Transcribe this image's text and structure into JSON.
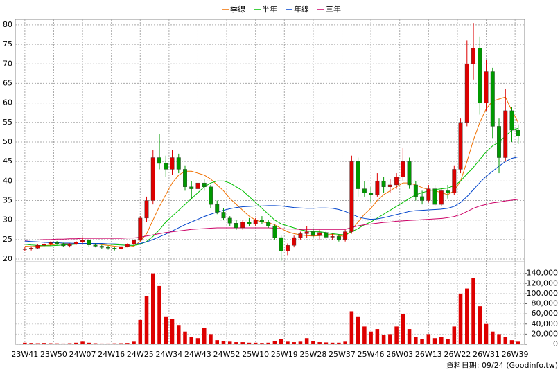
{
  "chart_data": {
    "type": "candlestick",
    "x": [
      0,
      2,
      4,
      6,
      8,
      10,
      12,
      14,
      16,
      18,
      20,
      22,
      24,
      26,
      28,
      30,
      32,
      34,
      36,
      38,
      40,
      42,
      44,
      46,
      48,
      50,
      52,
      54,
      56,
      58,
      60,
      62,
      64,
      66,
      68,
      70,
      72,
      74,
      76,
      78,
      80,
      82,
      84,
      86,
      88,
      90,
      92,
      94,
      96,
      98,
      100,
      102,
      104,
      106,
      108,
      110,
      112,
      114,
      116,
      118,
      120,
      122,
      124,
      126,
      128,
      130,
      132,
      134,
      136,
      138,
      140,
      142,
      144,
      146,
      148,
      150,
      152,
      154
    ],
    "open": [
      22.5,
      22.6,
      22.8,
      23.5,
      23.8,
      24.2,
      23.9,
      23.4,
      23.8,
      24.4,
      24.8,
      23.6,
      23.3,
      23,
      22.8,
      22.6,
      23.2,
      23.8,
      24.8,
      30.5,
      35,
      46,
      44.5,
      43,
      46,
      43,
      38.5,
      38,
      39.5,
      38.5,
      34,
      32,
      30.5,
      29.2,
      28,
      29.5,
      29,
      30,
      29.5,
      28.5,
      25.5,
      22,
      23.5,
      25.5,
      26.5,
      27,
      26,
      26.8,
      25.6,
      25.8,
      25,
      27,
      45,
      38,
      37,
      36.5,
      40,
      38.5,
      39,
      41,
      45,
      39,
      36,
      35,
      38,
      34,
      37.5,
      37,
      43,
      55,
      70,
      74,
      60,
      68,
      54,
      46,
      58,
      53
    ],
    "high": [
      23,
      23.3,
      23.8,
      24.2,
      24.5,
      24.6,
      24.2,
      24,
      24.6,
      25.6,
      25,
      24,
      23.6,
      23.4,
      23.2,
      23.4,
      24,
      25,
      31,
      36,
      48,
      52,
      46.5,
      48,
      47,
      44,
      40,
      40.5,
      40.5,
      39,
      35,
      33,
      31,
      30,
      30,
      30.5,
      30.5,
      31,
      30,
      28.8,
      26,
      24,
      26,
      27,
      28.5,
      27.8,
      27.5,
      27.2,
      26.5,
      26.4,
      27.5,
      46.5,
      46,
      40,
      38.5,
      42,
      41,
      40.5,
      42,
      48.5,
      46,
      40,
      37.5,
      39,
      39,
      38,
      39,
      44,
      56,
      76,
      80.5,
      77,
      71,
      69,
      56,
      63.5,
      59,
      54.5
    ],
    "low": [
      22,
      22.2,
      22.5,
      23.2,
      23.5,
      23.6,
      23.2,
      23,
      23.6,
      24,
      23.2,
      23,
      22.6,
      22.4,
      22.2,
      22.3,
      23,
      23.5,
      24.6,
      29.5,
      34,
      43,
      41,
      41.5,
      42,
      37.5,
      35.5,
      37,
      37.5,
      33,
      31.5,
      30,
      28.5,
      27.5,
      27.5,
      28.5,
      28.5,
      29,
      28,
      25,
      19.5,
      21,
      23,
      25,
      25.5,
      25.5,
      25,
      25.2,
      24.8,
      24.5,
      24.5,
      26.5,
      36,
      36,
      34.5,
      36,
      37,
      37,
      38,
      40,
      38,
      35,
      34,
      34.5,
      33.5,
      33.5,
      35.5,
      36.5,
      42,
      54,
      66,
      57,
      58,
      51,
      42,
      45,
      50,
      49.5
    ],
    "close": [
      22.6,
      22.8,
      23.5,
      23.8,
      24.2,
      23.9,
      23.4,
      23.8,
      24.4,
      24.8,
      23.6,
      23.3,
      23,
      22.8,
      22.6,
      23.2,
      23.8,
      24.8,
      30.5,
      35,
      46,
      44.5,
      43,
      46,
      43,
      38.5,
      38,
      39.5,
      38.5,
      34,
      32,
      30.5,
      29.2,
      28,
      29.5,
      29,
      30,
      29.5,
      28.5,
      25.5,
      22,
      23.5,
      25.5,
      26.5,
      27,
      26,
      26.8,
      25.6,
      25.8,
      25,
      27,
      45,
      38,
      37,
      36.5,
      40,
      38.5,
      39,
      41,
      45,
      39,
      36,
      35,
      38,
      34,
      37.5,
      37,
      43,
      55,
      70,
      74,
      60,
      68,
      54,
      46,
      58,
      53,
      51.5
    ],
    "up_color": "#dd0000",
    "down_color": "#009900",
    "volume": {
      "color": "#dd0000",
      "values": [
        3000,
        2500,
        2000,
        2500,
        2000,
        1800,
        1500,
        2000,
        3000,
        5000,
        3000,
        2000,
        1500,
        1500,
        1800,
        2000,
        2500,
        5000,
        48000,
        95000,
        140000,
        115000,
        55000,
        50000,
        38000,
        25000,
        15000,
        12000,
        32000,
        20000,
        8000,
        6000,
        5000,
        4000,
        4000,
        3000,
        3000,
        2500,
        3000,
        6000,
        10000,
        5000,
        4000,
        5000,
        12000,
        6000,
        4000,
        3500,
        3000,
        3000,
        5000,
        65000,
        55000,
        35000,
        25000,
        30000,
        18000,
        20000,
        35000,
        60000,
        30000,
        15000,
        10000,
        20000,
        12000,
        15000,
        10000,
        35000,
        100000,
        110000,
        130000,
        75000,
        40000,
        25000,
        20000,
        15000,
        8000,
        5000
      ]
    },
    "series": [
      {
        "name": "季線",
        "color": "#f07000",
        "values": [
          23.3,
          23.2,
          23.3,
          23.4,
          23.6,
          23.8,
          23.9,
          23.9,
          23.9,
          24,
          24,
          23.9,
          23.7,
          23.5,
          23.3,
          23.1,
          23.1,
          23.3,
          24.5,
          26.5,
          30,
          33.5,
          36.5,
          39.5,
          41.5,
          42.5,
          42.5,
          42,
          41.5,
          40.5,
          39,
          37.5,
          35.5,
          34,
          32.5,
          31,
          30,
          29.5,
          29.3,
          28.8,
          27.8,
          27,
          26.5,
          26.2,
          26,
          25.9,
          26,
          26.2,
          26.3,
          26,
          25.8,
          27.5,
          29.5,
          31.5,
          33,
          35,
          36.5,
          37.5,
          38.5,
          39.5,
          39.5,
          39,
          38.3,
          37.8,
          37.5,
          37,
          36.5,
          37.5,
          40,
          45,
          50.5,
          55,
          58.5,
          60.5,
          61,
          61.5,
          58,
          55
        ]
      },
      {
        "name": "半年",
        "color": "#00c000",
        "values": [
          23.8,
          23.6,
          23.5,
          23.4,
          23.4,
          23.5,
          23.6,
          23.7,
          23.8,
          23.9,
          23.9,
          23.9,
          23.8,
          23.8,
          23.7,
          23.6,
          23.5,
          23.5,
          23.8,
          24.5,
          25.8,
          27.5,
          29.5,
          31,
          32.5,
          34,
          35.5,
          37,
          38.5,
          39.5,
          40,
          40,
          39.5,
          38.5,
          37.5,
          36,
          34.5,
          33,
          31.5,
          30,
          29,
          28.5,
          28,
          27.5,
          27.2,
          27,
          27,
          26.8,
          26.5,
          26.3,
          26.2,
          27,
          27.8,
          28.8,
          29.5,
          30.5,
          31.5,
          32.5,
          33.5,
          34.5,
          35.5,
          36.5,
          37,
          37.5,
          37.8,
          38,
          38.2,
          38.8,
          40,
          41.8,
          43.5,
          45.5,
          47.5,
          49,
          50,
          51.5,
          53,
          53.5
        ]
      },
      {
        "name": "年線",
        "color": "#0044cc",
        "values": [
          24.6,
          24.5,
          24.4,
          24.3,
          24.2,
          24.2,
          24.1,
          24.1,
          24,
          24,
          24,
          24,
          24,
          23.9,
          23.9,
          23.8,
          23.8,
          23.8,
          24,
          24.4,
          25,
          25.7,
          26.4,
          27.2,
          28,
          28.8,
          29.5,
          30.2,
          30.9,
          31.5,
          32,
          32.5,
          32.9,
          33.2,
          33.4,
          33.5,
          33.6,
          33.6,
          33.7,
          33.7,
          33.6,
          33.4,
          33.2,
          33.1,
          33,
          33,
          33.1,
          33.1,
          33,
          32.7,
          32.2,
          31.5,
          30.8,
          30.4,
          30.2,
          30.3,
          30.6,
          31,
          31.4,
          31.8,
          32.2,
          32.4,
          32.5,
          32.6,
          32.7,
          32.8,
          33,
          33.5,
          34.5,
          36,
          37.8,
          39.6,
          41.2,
          42.5,
          43.8,
          45,
          45.8,
          46.2
        ]
      },
      {
        "name": "三年",
        "color": "#cc0066",
        "values": [
          24.8,
          24.9,
          24.9,
          25,
          25,
          25.1,
          25.1,
          25.2,
          25.2,
          25.3,
          25.3,
          25.3,
          25.3,
          25.3,
          25.3,
          25.3,
          25.4,
          25.4,
          25.6,
          25.9,
          26.2,
          26.5,
          26.8,
          27,
          27.2,
          27.4,
          27.6,
          27.7,
          27.8,
          27.9,
          28,
          28,
          28,
          28,
          28,
          28,
          28,
          28,
          28,
          27.9,
          27.8,
          27.7,
          27.7,
          27.6,
          27.6,
          27.6,
          27.6,
          27.6,
          27.6,
          27.6,
          27.6,
          28.1,
          28.5,
          28.8,
          29,
          29.2,
          29.4,
          29.5,
          29.7,
          29.8,
          29.9,
          30,
          30.1,
          30.2,
          30.3,
          30.4,
          30.6,
          30.9,
          31.4,
          32.2,
          33,
          33.6,
          34,
          34.4,
          34.6,
          34.9,
          35.1,
          35.3
        ]
      }
    ],
    "xlim": [
      -3,
      156
    ],
    "xticks": [
      {
        "value": 0,
        "label": "23W41"
      },
      {
        "value": 9,
        "label": "23W50"
      },
      {
        "value": 18,
        "label": "24W07"
      },
      {
        "value": 27,
        "label": "24W16"
      },
      {
        "value": 36,
        "label": "24W25"
      },
      {
        "value": 45,
        "label": "24W34"
      },
      {
        "value": 54,
        "label": "24W43"
      },
      {
        "value": 63,
        "label": "24W52"
      },
      {
        "value": 72,
        "label": "25W10"
      },
      {
        "value": 81,
        "label": "25W19"
      },
      {
        "value": 90,
        "label": "25W28"
      },
      {
        "value": 99,
        "label": "25W37"
      },
      {
        "value": 108,
        "label": "25W46"
      },
      {
        "value": 117,
        "label": "26W03"
      },
      {
        "value": 126,
        "label": "26W13"
      },
      {
        "value": 135,
        "label": "26W22"
      },
      {
        "value": 144,
        "label": "26W31"
      },
      {
        "value": 153,
        "label": "26W39"
      }
    ],
    "ylim": [
      19.3,
      81.4
    ],
    "yticks": [
      20,
      25,
      30,
      35,
      40,
      45,
      50,
      55,
      60,
      65,
      70,
      75,
      80
    ],
    "y2lim": [
      0,
      160000
    ],
    "y2ticks": [
      0,
      {
        "value": 20000,
        "label": "20,000"
      },
      {
        "value": 40000,
        "label": "40,000"
      },
      {
        "value": 60000,
        "label": "60,000"
      },
      {
        "value": 80000,
        "label": "80,000"
      },
      {
        "value": 100000,
        "label": "100,000"
      },
      {
        "value": 120000,
        "label": "120,000"
      },
      {
        "value": 140000,
        "label": "140,000"
      }
    ],
    "grid": true,
    "legend": "top",
    "footnote": "資料日期: 09/24 (Goodinfo.tw)"
  }
}
